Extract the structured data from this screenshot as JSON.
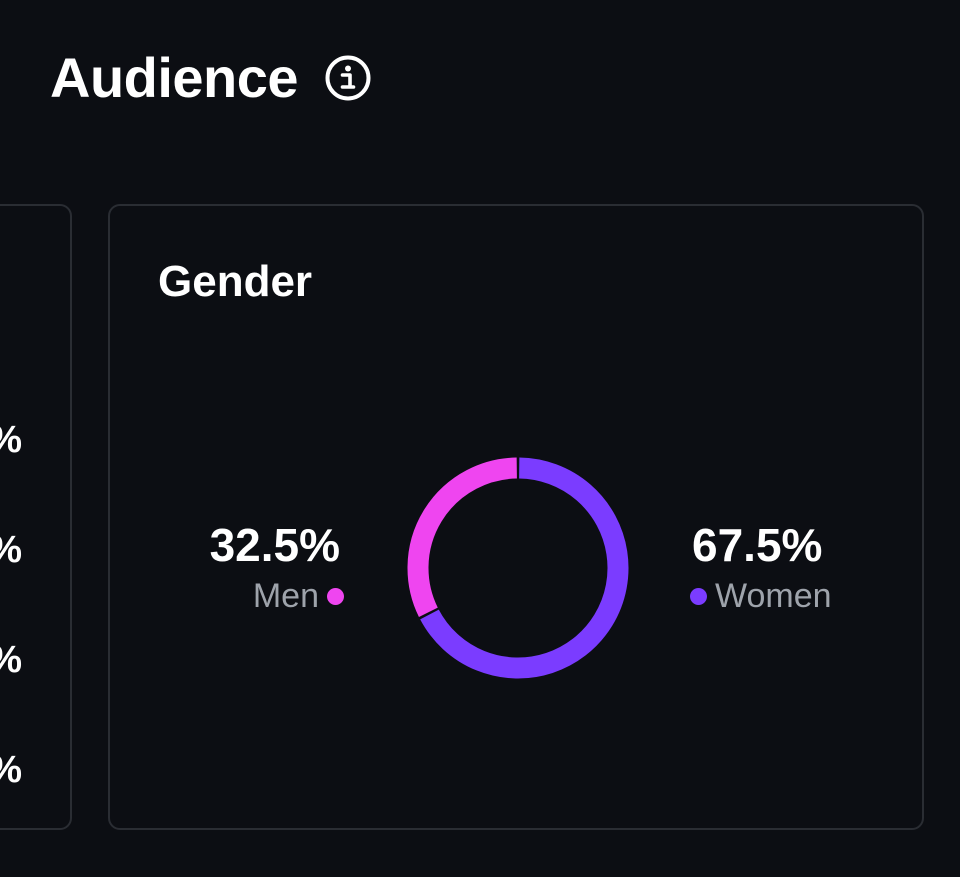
{
  "header": {
    "title": "Audience",
    "info_icon": "info-circle-icon"
  },
  "left_card": {
    "percent_fragments": [
      "%",
      "%",
      "%",
      "%"
    ]
  },
  "gender_card": {
    "title": "Gender",
    "men": {
      "value": "32.5%",
      "label": "Men",
      "color": "#ef45f0"
    },
    "women": {
      "value": "67.5%",
      "label": "Women",
      "color": "#7b3cff"
    }
  },
  "chart_data": {
    "type": "pie",
    "title": "Gender",
    "categories": [
      "Men",
      "Women"
    ],
    "values": [
      32.5,
      67.5
    ],
    "colors": [
      "#ef45f0",
      "#7b3cff"
    ],
    "style": "donut"
  }
}
